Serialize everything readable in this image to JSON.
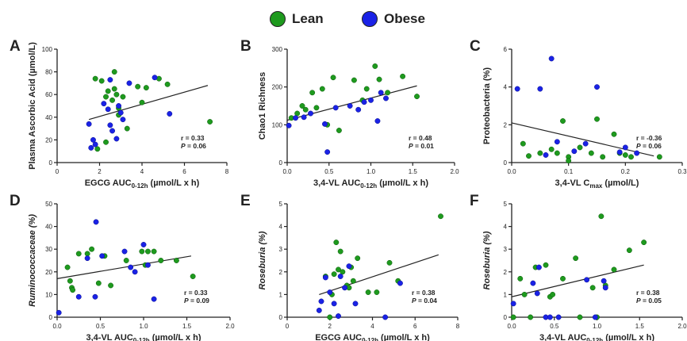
{
  "legend": {
    "lean": {
      "label": "Lean",
      "color": "#1e9a1e"
    },
    "obese": {
      "label": "Obese",
      "color": "#1a22e6"
    }
  },
  "chart_data": [
    {
      "type": "scatter",
      "panel": "A",
      "xlabel": "EGCG AUC",
      "xlabel_sub": "0-12h",
      "xlabel_suffix": " (µmol/L x h)",
      "ylabel": "Plasma Ascorbic Acid (µmol/L)",
      "ylabel_italic": false,
      "xlim": [
        0,
        8
      ],
      "ylim": [
        0,
        100
      ],
      "xticks": [
        0,
        2,
        4,
        6,
        8
      ],
      "xtick_labels": [
        "0",
        "2",
        "4",
        "6",
        "8"
      ],
      "yticks": [
        0,
        20,
        40,
        60,
        80,
        100
      ],
      "ytick_labels": [
        "0",
        "20",
        "40",
        "60",
        "80",
        "100"
      ],
      "stat_r": "r = 0.33",
      "stat_p": "= 0.06",
      "trend": [
        [
          1.5,
          38
        ],
        [
          7.1,
          68
        ]
      ],
      "lean": [
        [
          1.8,
          74
        ],
        [
          2.1,
          72
        ],
        [
          2.3,
          58
        ],
        [
          2.4,
          63
        ],
        [
          2.6,
          55
        ],
        [
          2.7,
          80
        ],
        [
          2.7,
          65
        ],
        [
          2.9,
          48
        ],
        [
          2.9,
          42
        ],
        [
          3.1,
          58
        ],
        [
          3.3,
          30
        ],
        [
          3.8,
          67
        ],
        [
          4.0,
          53
        ],
        [
          4.2,
          66
        ],
        [
          4.8,
          74
        ],
        [
          5.2,
          69
        ],
        [
          7.2,
          36
        ],
        [
          1.9,
          12
        ],
        [
          2.3,
          18
        ],
        [
          2.8,
          60
        ]
      ],
      "obese": [
        [
          1.5,
          34
        ],
        [
          1.6,
          13
        ],
        [
          1.7,
          20
        ],
        [
          1.8,
          16
        ],
        [
          2.2,
          52
        ],
        [
          2.4,
          47
        ],
        [
          2.5,
          33
        ],
        [
          2.6,
          28
        ],
        [
          2.8,
          21
        ],
        [
          2.9,
          50
        ],
        [
          3.0,
          44
        ],
        [
          3.1,
          38
        ],
        [
          3.4,
          70
        ],
        [
          4.6,
          75
        ],
        [
          5.3,
          43
        ],
        [
          2.5,
          73
        ]
      ]
    },
    {
      "type": "scatter",
      "panel": "B",
      "xlabel": "3,4-VL AUC",
      "xlabel_sub": "0-12h",
      "xlabel_suffix": " (µmol/L x h)",
      "ylabel": "Chao1 Richness",
      "ylabel_italic": false,
      "xlim": [
        0,
        2.0
      ],
      "ylim": [
        0,
        300
      ],
      "xticks": [
        0,
        0.5,
        1.0,
        1.5,
        2.0
      ],
      "xtick_labels": [
        "0.0",
        "0.5",
        "1.0",
        "1.5",
        "2.0"
      ],
      "yticks": [
        0,
        100,
        200,
        300
      ],
      "ytick_labels": [
        "0",
        "100",
        "200",
        "300"
      ],
      "stat_r": "r = 0.48",
      "stat_p": "= 0.01",
      "trend": [
        [
          0.0,
          112
        ],
        [
          1.55,
          203
        ]
      ],
      "lean": [
        [
          0.05,
          118
        ],
        [
          0.12,
          130
        ],
        [
          0.18,
          150
        ],
        [
          0.22,
          140
        ],
        [
          0.3,
          185
        ],
        [
          0.42,
          195
        ],
        [
          0.48,
          100
        ],
        [
          0.55,
          225
        ],
        [
          0.62,
          85
        ],
        [
          0.8,
          218
        ],
        [
          0.95,
          195
        ],
        [
          1.05,
          255
        ],
        [
          1.1,
          220
        ],
        [
          1.2,
          185
        ],
        [
          1.38,
          228
        ],
        [
          1.55,
          175
        ],
        [
          0.35,
          145
        ],
        [
          0.9,
          165
        ]
      ],
      "obese": [
        [
          0.02,
          98
        ],
        [
          0.1,
          118
        ],
        [
          0.2,
          120
        ],
        [
          0.28,
          130
        ],
        [
          0.45,
          102
        ],
        [
          0.48,
          28
        ],
        [
          0.58,
          145
        ],
        [
          0.85,
          140
        ],
        [
          0.92,
          160
        ],
        [
          1.0,
          165
        ],
        [
          1.08,
          110
        ],
        [
          1.12,
          185
        ],
        [
          1.18,
          170
        ],
        [
          0.75,
          150
        ]
      ]
    },
    {
      "type": "scatter",
      "panel": "C",
      "xlabel": "3,4-VL C",
      "xlabel_sub": "max",
      "xlabel_suffix": " (µmol/L)",
      "ylabel": "Proteobacteria (%)",
      "ylabel_italic": false,
      "xlim": [
        0,
        0.3
      ],
      "ylim": [
        0,
        6
      ],
      "xticks": [
        0,
        0.1,
        0.2,
        0.3
      ],
      "xtick_labels": [
        "0.0",
        "0.1",
        "0.2",
        "0.3"
      ],
      "yticks": [
        0,
        2,
        4,
        6
      ],
      "ytick_labels": [
        "0",
        "2",
        "4",
        "6"
      ],
      "stat_r": "r = -0.36",
      "stat_p": "= 0.06",
      "trend": [
        [
          0.0,
          2.1
        ],
        [
          0.25,
          0.35
        ]
      ],
      "lean": [
        [
          0.02,
          1.0
        ],
        [
          0.03,
          0.35
        ],
        [
          0.05,
          0.5
        ],
        [
          0.07,
          0.7
        ],
        [
          0.08,
          0.5
        ],
        [
          0.09,
          2.2
        ],
        [
          0.1,
          0.3
        ],
        [
          0.1,
          0.1
        ],
        [
          0.12,
          0.8
        ],
        [
          0.14,
          0.5
        ],
        [
          0.15,
          2.3
        ],
        [
          0.16,
          0.3
        ],
        [
          0.18,
          1.5
        ],
        [
          0.19,
          0.5
        ],
        [
          0.2,
          0.4
        ],
        [
          0.21,
          0.3
        ],
        [
          0.26,
          0.3
        ]
      ],
      "obese": [
        [
          0.01,
          3.9
        ],
        [
          0.05,
          3.9
        ],
        [
          0.07,
          5.5
        ],
        [
          0.08,
          1.1
        ],
        [
          0.11,
          0.6
        ],
        [
          0.13,
          1.0
        ],
        [
          0.15,
          4.0
        ],
        [
          0.19,
          0.55
        ],
        [
          0.2,
          0.8
        ],
        [
          0.22,
          0.5
        ],
        [
          0.06,
          0.4
        ]
      ]
    },
    {
      "type": "scatter",
      "panel": "D",
      "xlabel": "3,4-VL AUC",
      "xlabel_sub": "0-12h",
      "xlabel_suffix": " (µmol/L x h)",
      "ylabel": "Ruminococcaceae (%)",
      "ylabel_italic": true,
      "xlim": [
        0,
        2.0
      ],
      "ylim": [
        0,
        50
      ],
      "xticks": [
        0,
        0.5,
        1.0,
        1.5,
        2.0
      ],
      "xtick_labels": [
        "0.0",
        "0.5",
        "1.0",
        "1.5",
        "2.0"
      ],
      "yticks": [
        0,
        10,
        20,
        30,
        40,
        50
      ],
      "ytick_labels": [
        "0",
        "10",
        "20",
        "30",
        "40",
        "50"
      ],
      "stat_r": "r = 0.33",
      "stat_p": "= 0.09",
      "trend": [
        [
          0.0,
          17
        ],
        [
          1.55,
          27
        ]
      ],
      "lean": [
        [
          0.12,
          22
        ],
        [
          0.15,
          16
        ],
        [
          0.17,
          13
        ],
        [
          0.18,
          12
        ],
        [
          0.25,
          28
        ],
        [
          0.35,
          28
        ],
        [
          0.4,
          30
        ],
        [
          0.48,
          15
        ],
        [
          0.55,
          27
        ],
        [
          0.62,
          14
        ],
        [
          0.8,
          25
        ],
        [
          0.98,
          29
        ],
        [
          1.02,
          23
        ],
        [
          1.05,
          29
        ],
        [
          1.12,
          29
        ],
        [
          1.2,
          25
        ],
        [
          1.38,
          25
        ],
        [
          1.57,
          18
        ]
      ],
      "obese": [
        [
          0.02,
          2
        ],
        [
          0.25,
          9
        ],
        [
          0.35,
          26
        ],
        [
          0.44,
          9
        ],
        [
          0.45,
          42
        ],
        [
          0.52,
          27
        ],
        [
          0.78,
          29
        ],
        [
          0.85,
          22
        ],
        [
          0.9,
          20
        ],
        [
          1.0,
          32
        ],
        [
          1.05,
          23
        ],
        [
          1.12,
          8
        ]
      ]
    },
    {
      "type": "scatter",
      "panel": "E",
      "xlabel": "EGCG AUC",
      "xlabel_sub": "0-12h",
      "xlabel_suffix": " (µmol/L x h)",
      "ylabel": "Roseburia (%)",
      "ylabel_italic": true,
      "xlim": [
        0,
        8
      ],
      "ylim": [
        0,
        5
      ],
      "xticks": [
        0,
        2,
        4,
        6,
        8
      ],
      "xtick_labels": [
        "0",
        "2",
        "4",
        "6",
        "8"
      ],
      "yticks": [
        0,
        1,
        2,
        3,
        4,
        5
      ],
      "ytick_labels": [
        "0",
        "1",
        "2",
        "3",
        "4",
        "5"
      ],
      "stat_r": "r = 0.38",
      "stat_p": "= 0.04",
      "trend": [
        [
          1.5,
          1.0
        ],
        [
          7.1,
          2.75
        ]
      ],
      "lean": [
        [
          1.8,
          1.8
        ],
        [
          2.0,
          0.0
        ],
        [
          2.1,
          1.0
        ],
        [
          2.2,
          1.9
        ],
        [
          2.3,
          3.3
        ],
        [
          2.4,
          2.1
        ],
        [
          2.5,
          2.9
        ],
        [
          2.6,
          2.0
        ],
        [
          2.8,
          1.4
        ],
        [
          3.0,
          2.2
        ],
        [
          3.1,
          1.6
        ],
        [
          3.3,
          2.6
        ],
        [
          3.8,
          1.1
        ],
        [
          4.2,
          1.1
        ],
        [
          4.8,
          2.4
        ],
        [
          5.2,
          1.6
        ],
        [
          7.2,
          4.45
        ],
        [
          2.9,
          1.3
        ]
      ],
      "obese": [
        [
          1.5,
          0.3
        ],
        [
          1.6,
          0.7
        ],
        [
          1.8,
          1.75
        ],
        [
          2.0,
          1.1
        ],
        [
          2.2,
          0.6
        ],
        [
          2.5,
          1.8
        ],
        [
          2.7,
          1.3
        ],
        [
          2.9,
          2.25
        ],
        [
          3.2,
          0.6
        ],
        [
          4.6,
          0.0
        ],
        [
          5.3,
          1.5
        ],
        [
          2.4,
          0.05
        ]
      ]
    },
    {
      "type": "scatter",
      "panel": "F",
      "xlabel": "3,4-VL AUC",
      "xlabel_sub": "0-12h",
      "xlabel_suffix": " (µmol/L x h)",
      "ylabel": "Roseburia (%)",
      "ylabel_italic": true,
      "xlim": [
        0,
        2.0
      ],
      "ylim": [
        0,
        5
      ],
      "xticks": [
        0,
        0.5,
        1.0,
        1.5,
        2.0
      ],
      "xtick_labels": [
        "0.0",
        "0.5",
        "1.0",
        "1.5",
        "2.0"
      ],
      "yticks": [
        0,
        1,
        2,
        3,
        4,
        5
      ],
      "ytick_labels": [
        "0",
        "1",
        "2",
        "3",
        "4",
        "5"
      ],
      "stat_r": "r = 0.38",
      "stat_p": "= 0.05",
      "trend": [
        [
          0.0,
          0.9
        ],
        [
          1.55,
          2.3
        ]
      ],
      "lean": [
        [
          0.1,
          1.7
        ],
        [
          0.15,
          1.0
        ],
        [
          0.22,
          0.0
        ],
        [
          0.28,
          2.2
        ],
        [
          0.4,
          2.3
        ],
        [
          0.45,
          0.9
        ],
        [
          0.48,
          1.0
        ],
        [
          0.6,
          1.7
        ],
        [
          0.75,
          2.6
        ],
        [
          0.8,
          0.0
        ],
        [
          0.95,
          1.3
        ],
        [
          1.05,
          4.45
        ],
        [
          1.1,
          1.4
        ],
        [
          1.2,
          2.1
        ],
        [
          1.38,
          2.95
        ],
        [
          1.55,
          3.3
        ],
        [
          1.0,
          0.0
        ],
        [
          0.02,
          0.0
        ]
      ],
      "obese": [
        [
          0.02,
          0.6
        ],
        [
          0.25,
          1.5
        ],
        [
          0.32,
          2.2
        ],
        [
          0.4,
          0.0
        ],
        [
          0.45,
          0.0
        ],
        [
          0.55,
          0.0
        ],
        [
          0.88,
          1.65
        ],
        [
          0.98,
          0.0
        ],
        [
          1.08,
          1.6
        ],
        [
          1.1,
          1.3
        ],
        [
          0.3,
          1.05
        ]
      ]
    }
  ]
}
